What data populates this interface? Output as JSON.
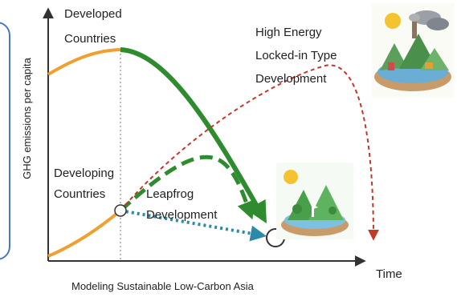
{
  "y_axis_label": "GHG emissions per capita",
  "x_axis_label": "Time",
  "caption": "Modeling Sustainable Low-Carbon Asia",
  "labels": {
    "developed_line1": "Developed",
    "developed_line2": "Countries",
    "developing_line1": "Developing",
    "developing_line2": "Countries",
    "high_energy_line1": "High Energy",
    "high_energy_line2": "Locked-in Type",
    "high_energy_line3": "Development",
    "leapfrog_line1": "Leapfrog",
    "leapfrog_line2": "Development"
  },
  "colors": {
    "panel_border": "#4a78c8",
    "historical_path": "#f0a030",
    "developed_path": "#2e8b2e",
    "leapfrog_path": "#2e8b2e",
    "locked_in_path": "#c0392b",
    "teal_path": "#2a8aa8",
    "axis": "#333333",
    "text": "#222222"
  },
  "icons": {
    "polluted_world": "polluted-world-icon",
    "green_world": "green-world-icon"
  }
}
